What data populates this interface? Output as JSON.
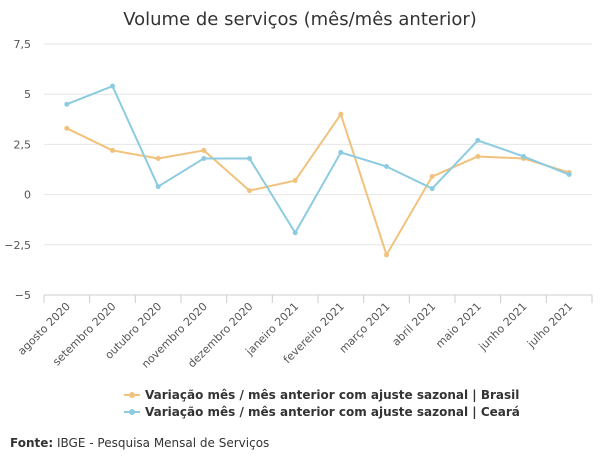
{
  "chart_data": {
    "type": "line",
    "title": "Volume de serviços (mês/mês anterior)",
    "categories": [
      "agosto 2020",
      "setembro 2020",
      "outubro 2020",
      "novembro 2020",
      "dezembro 2020",
      "janeiro 2021",
      "fevereiro 2021",
      "março 2021",
      "abril 2021",
      "maio 2021",
      "junho 2021",
      "julho 2021"
    ],
    "yticks": [
      "7,5",
      "5",
      "2,5",
      "0",
      "−2,5",
      "−5"
    ],
    "ylim": [
      -5,
      7.5
    ],
    "grid": true,
    "legend_position": "bottom",
    "series": [
      {
        "name": "Variação mês / mês anterior com ajuste sazonal | Brasil",
        "color": "#f1c27d",
        "values": [
          3.3,
          2.2,
          1.8,
          2.2,
          0.2,
          0.7,
          4.0,
          -3.0,
          0.9,
          1.9,
          1.8,
          1.1
        ]
      },
      {
        "name": "Variação mês / mês anterior com ajuste sazonal | Ceará",
        "color": "#8ccbe0",
        "values": [
          4.5,
          5.4,
          0.4,
          1.8,
          1.8,
          -1.9,
          2.1,
          1.4,
          0.3,
          2.7,
          1.9,
          1.0
        ]
      }
    ]
  },
  "source": {
    "label": "Fonte:",
    "text": "IBGE - Pesquisa Mensal de Serviços"
  }
}
